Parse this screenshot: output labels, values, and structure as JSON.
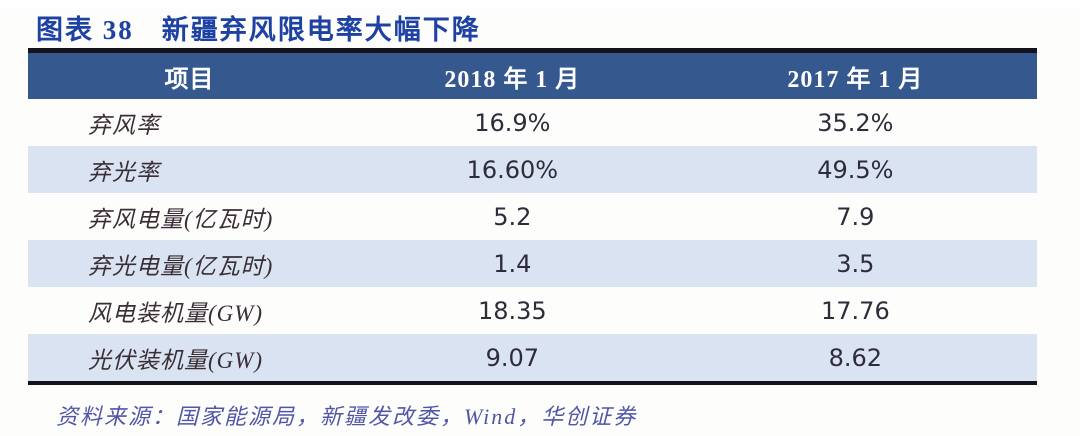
{
  "figure": {
    "label": "图表 38",
    "title": "新疆弃风限电率大幅下降"
  },
  "table": {
    "headers": {
      "item": "项目",
      "col2018": "2018 年 1 月",
      "col2017": "2017 年 1 月"
    },
    "rows": [
      {
        "item": "弃风率",
        "y2018": "16.9%",
        "y2017": "35.2%"
      },
      {
        "item": "弃光率",
        "y2018": "16.60%",
        "y2017": "49.5%"
      },
      {
        "item": "弃风电量(亿瓦时)",
        "y2018": "5.2",
        "y2017": "7.9"
      },
      {
        "item": "弃光电量(亿瓦时)",
        "y2018": "1.4",
        "y2017": "3.5"
      },
      {
        "item": "风电装机量(GW)",
        "y2018": "18.35",
        "y2017": "17.76"
      },
      {
        "item": "光伏装机量(GW)",
        "y2018": "9.07",
        "y2017": "8.62"
      }
    ]
  },
  "source": {
    "text": "资料来源：国家能源局，新疆发改委，Wind，华创证券"
  },
  "colors": {
    "title_blue": "#1E41A4",
    "header_bg": "#35598E",
    "header_text": "#FFFFFF",
    "alt_row_bg": "#DAE3F1",
    "cell_text": "#2F2C3A",
    "source_purple": "#5156A6",
    "border_black": "#13131D"
  },
  "chart_data": {
    "type": "table",
    "title": "图表 38 新疆弃风限电率大幅下降",
    "columns": [
      "项目",
      "2018 年 1 月",
      "2017 年 1 月"
    ],
    "rows": [
      [
        "弃风率",
        "16.9%",
        "35.2%"
      ],
      [
        "弃光率",
        "16.60%",
        "49.5%"
      ],
      [
        "弃风电量(亿瓦时)",
        "5.2",
        "7.9"
      ],
      [
        "弃光电量(亿瓦时)",
        "1.4",
        "3.5"
      ],
      [
        "风电装机量(GW)",
        "18.35",
        "17.76"
      ],
      [
        "光伏装机量(GW)",
        "9.07",
        "8.62"
      ]
    ],
    "source": "资料来源：国家能源局，新疆发改委，Wind，华创证券",
    "layout": {
      "grid": "alternating-row-shading",
      "header_position": "top",
      "legend": "none"
    }
  }
}
